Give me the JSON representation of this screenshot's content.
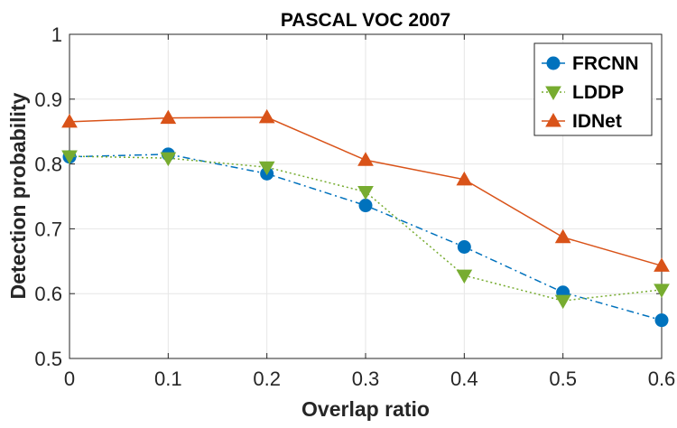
{
  "chart_data": {
    "type": "line",
    "title": "PASCAL VOC 2007",
    "xlabel": "Overlap ratio",
    "ylabel": "Detection probability",
    "xlim": [
      0,
      0.6
    ],
    "ylim": [
      0.5,
      1.0
    ],
    "xticks": [
      "0",
      "0.1",
      "0.2",
      "0.3",
      "0.4",
      "0.5",
      "0.6"
    ],
    "yticks": [
      "0.5",
      "0.6",
      "0.7",
      "0.8",
      "0.9",
      "1"
    ],
    "grid": true,
    "legend_position": "top-right",
    "x": [
      0,
      0.1,
      0.2,
      0.3,
      0.4,
      0.5,
      0.6
    ],
    "series": [
      {
        "name": "FRCNN",
        "values": [
          0.811,
          0.815,
          0.785,
          0.736,
          0.672,
          0.602,
          0.559
        ],
        "color": "#0072BD",
        "marker": "circle",
        "line_style": "dash-dot"
      },
      {
        "name": "LDDP",
        "values": [
          0.812,
          0.809,
          0.795,
          0.757,
          0.628,
          0.589,
          0.606
        ],
        "color": "#77AC30",
        "marker": "triangle-down",
        "line_style": "dotted"
      },
      {
        "name": "IDNet",
        "values": [
          0.865,
          0.871,
          0.872,
          0.806,
          0.776,
          0.687,
          0.643
        ],
        "color": "#D95319",
        "marker": "triangle-up",
        "line_style": "solid"
      }
    ]
  }
}
